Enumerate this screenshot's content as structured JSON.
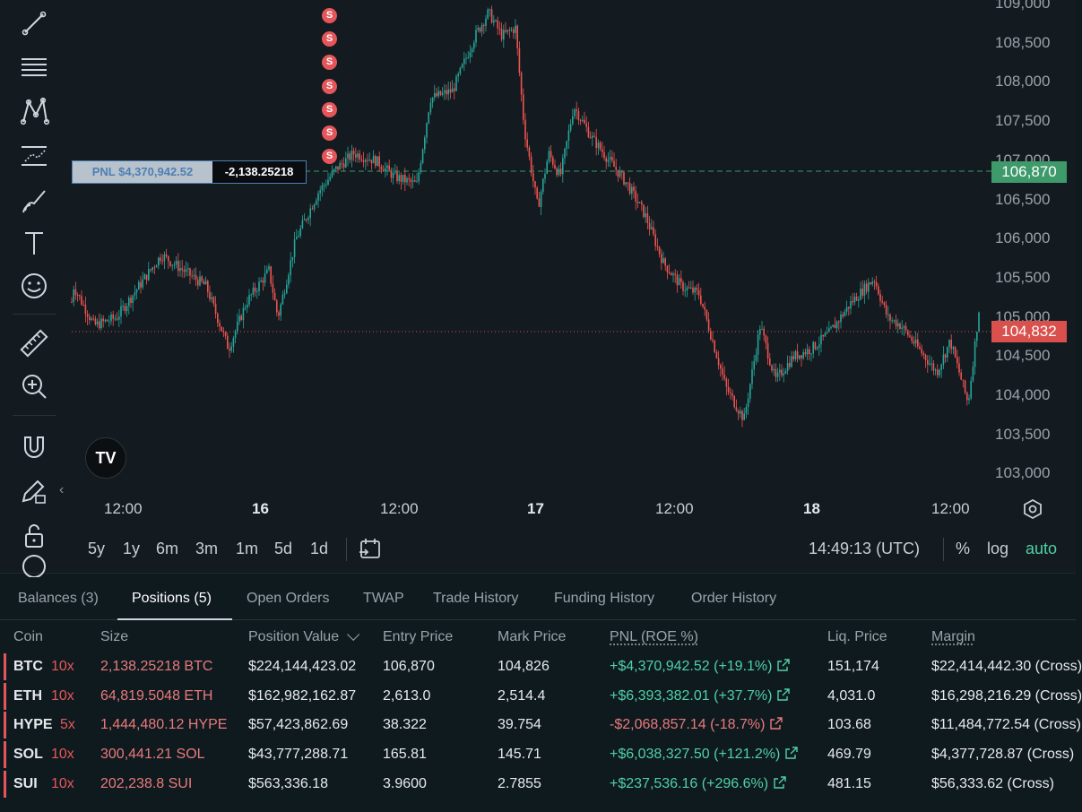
{
  "chart": {
    "price_axis": [
      "109,000",
      "108,500",
      "108,000",
      "107,500",
      "107,000",
      "106,500",
      "106,000",
      "105,500",
      "105,000",
      "104,500",
      "104,000",
      "103,500",
      "103,000"
    ],
    "time_axis": [
      {
        "label": "12:00",
        "bold": false
      },
      {
        "label": "16",
        "bold": true
      },
      {
        "label": "12:00",
        "bold": false
      },
      {
        "label": "17",
        "bold": true
      },
      {
        "label": "12:00",
        "bold": false
      },
      {
        "label": "18",
        "bold": true
      },
      {
        "label": "12:00",
        "bold": false
      }
    ],
    "entry_price_tag": "106,870",
    "mark_price_tag": "104,832",
    "pnl_label": "PNL $4,370,942.52",
    "pnl_size": "-2,138.25218",
    "sell_marker": "S",
    "sell_marker_count": 7,
    "logo": "TV",
    "colors": {
      "entry": "#3e9a6a",
      "mark": "#d9504d",
      "up": "#26a69a",
      "down": "#ef5350"
    }
  },
  "range_bar": {
    "ranges": [
      "5y",
      "1y",
      "6m",
      "3m",
      "1m",
      "5d",
      "1d"
    ],
    "clock": "14:49:13 (UTC)",
    "percent": "%",
    "log": "log",
    "auto": "auto"
  },
  "tabs": [
    "Balances (3)",
    "Positions (5)",
    "Open Orders",
    "TWAP",
    "Trade History",
    "Funding History",
    "Order History"
  ],
  "active_tab": "Positions (5)",
  "table": {
    "headers": {
      "coin": "Coin",
      "size": "Size",
      "position_value": "Position Value",
      "entry_price": "Entry Price",
      "mark_price": "Mark Price",
      "pnl": "PNL (ROE %)",
      "liq_price": "Liq. Price",
      "margin": "Margin"
    },
    "rows": [
      {
        "coin": "BTC",
        "leverage": "10x",
        "size": "2,138.25218 BTC",
        "position_value": "$224,144,423.02",
        "entry_price": "106,870",
        "mark_price": "104,826",
        "pnl": "+$4,370,942.52 (+19.1%)",
        "pnl_sign": "pos",
        "liq_price": "151,174",
        "margin": "$22,414,442.30 (Cross)"
      },
      {
        "coin": "ETH",
        "leverage": "10x",
        "size": "64,819.5048 ETH",
        "position_value": "$162,982,162.87",
        "entry_price": "2,613.0",
        "mark_price": "2,514.4",
        "pnl": "+$6,393,382.01 (+37.7%)",
        "pnl_sign": "pos",
        "liq_price": "4,031.0",
        "margin": "$16,298,216.29 (Cross)"
      },
      {
        "coin": "HYPE",
        "leverage": "5x",
        "size": "1,444,480.12 HYPE",
        "position_value": "$57,423,862.69",
        "entry_price": "38.322",
        "mark_price": "39.754",
        "pnl": "-$2,068,857.14 (-18.7%)",
        "pnl_sign": "neg",
        "liq_price": "103.68",
        "margin": "$11,484,772.54 (Cross)"
      },
      {
        "coin": "SOL",
        "leverage": "10x",
        "size": "300,441.21 SOL",
        "position_value": "$43,777,288.71",
        "entry_price": "165.81",
        "mark_price": "145.71",
        "pnl": "+$6,038,327.50 (+121.2%)",
        "pnl_sign": "pos",
        "liq_price": "469.79",
        "margin": "$4,377,728.87 (Cross)"
      },
      {
        "coin": "SUI",
        "leverage": "10x",
        "size": "202,238.8 SUI",
        "position_value": "$563,336.18",
        "entry_price": "3.9600",
        "mark_price": "2.7855",
        "pnl": "+$237,536.16 (+296.6%)",
        "pnl_sign": "pos",
        "liq_price": "481.15",
        "margin": "$56,333.62 (Cross)"
      }
    ]
  }
}
